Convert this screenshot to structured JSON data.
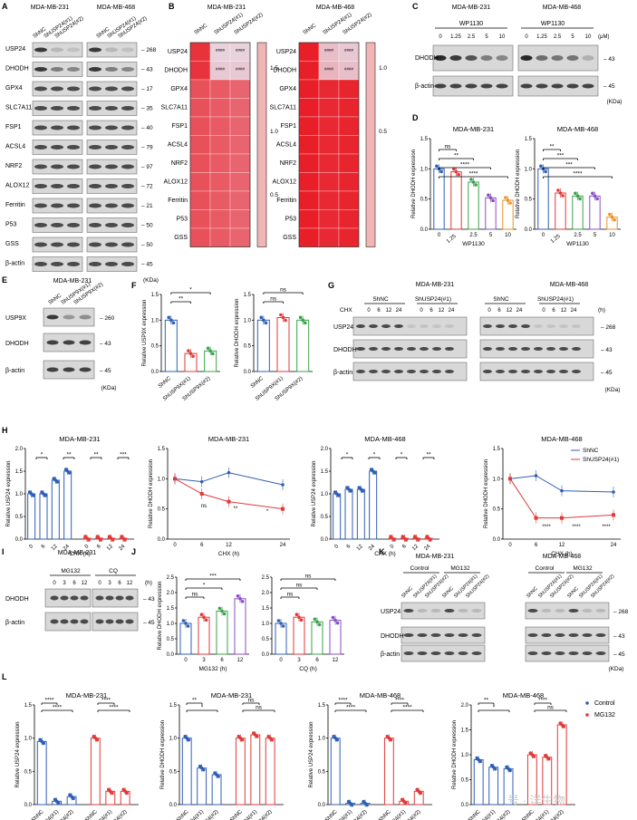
{
  "colors": {
    "nc": "#2f5fb5",
    "g1": "#e03a3a",
    "g2": "#3aa34a",
    "g3": "#8a4fc2",
    "g4": "#e8922a",
    "control": "#2f5fb5",
    "mg132": "#e03a3a",
    "heat_hi": "#e8141e",
    "heat_lo": "#fbe3e3"
  },
  "panels": [
    "A",
    "B",
    "C",
    "D",
    "E",
    "F",
    "G",
    "H",
    "I",
    "J",
    "K",
    "L"
  ],
  "sig": {
    "ns": "ns",
    "s1": "*",
    "s2": "**",
    "s3": "***",
    "s4": "****",
    "h4": "####"
  },
  "common": {
    "kda": "(KDa)",
    "bactin": "β-actin",
    "h": "(h)",
    "cl_231": "MDA-MB-231",
    "cl_468": "MDA-MB-468"
  },
  "panelA": {
    "lanes": [
      "ShNC",
      "ShUSP24(#1)",
      "ShUSP24(#2)"
    ],
    "blots": [
      {
        "label": "USP24",
        "kda": "268"
      },
      {
        "label": "DHODH",
        "kda": "43"
      },
      {
        "label": "GPX4",
        "kda": "17"
      },
      {
        "label": "SLC7A11",
        "kda": "35"
      },
      {
        "label": "FSP1",
        "kda": "40"
      },
      {
        "label": "ACSL4",
        "kda": "79"
      },
      {
        "label": "NRF2",
        "kda": "97"
      },
      {
        "label": "ALOX12",
        "kda": "72"
      },
      {
        "label": "Ferritin",
        "kda": "21"
      },
      {
        "label": "P53",
        "kda": "50"
      },
      {
        "label": "GSS",
        "kda": "50"
      },
      {
        "label": "β-actin",
        "kda": "45"
      }
    ]
  },
  "panelB": {
    "columns": [
      "ShNC",
      "ShUSP24(#1)",
      "ShUSP24(#2)"
    ],
    "rows": [
      "USP24",
      "DHODH",
      "GPX4",
      "SLC7A11",
      "FSP1",
      "ACSL4",
      "NRF2",
      "ALOX12",
      "Ferritin",
      "P53",
      "GSS"
    ],
    "scale_231": [
      "1.5",
      "1.0",
      "0.5"
    ],
    "scale_468": [
      "1.0",
      "0.5"
    ]
  },
  "panelC": {
    "title": "WP1130",
    "doses": [
      "0",
      "1.25",
      "2.5",
      "5",
      "10"
    ],
    "unit": "(μM)",
    "labels": [
      "DHODH",
      "β-actin"
    ],
    "kda": [
      "43",
      "45"
    ]
  },
  "chart_data": [
    {
      "panel": "D",
      "type": "bar",
      "title": "MDA-MB-231",
      "ylabel": "Relative DHODH expression",
      "xlabel": "WP1130",
      "categories": [
        "0",
        "1.25",
        "2.5",
        "5",
        "10"
      ],
      "values": [
        1.0,
        0.95,
        0.78,
        0.52,
        0.48
      ],
      "ylim": [
        0,
        1.5
      ],
      "yticks": [
        "0.0",
        "0.5",
        "1.0",
        "1.5"
      ],
      "sig": [
        "ns",
        "**",
        "****",
        "****"
      ]
    },
    {
      "panel": "D",
      "type": "bar",
      "title": "MDA-MB-468",
      "ylabel": "Relative DHODH expression",
      "xlabel": "WP1130",
      "categories": [
        "0",
        "1.25",
        "2.5",
        "5",
        "10"
      ],
      "values": [
        1.0,
        0.6,
        0.55,
        0.55,
        0.2
      ],
      "ylim": [
        0,
        1.5
      ],
      "yticks": [
        "0.0",
        "0.5",
        "1.0",
        "1.5"
      ],
      "sig": [
        "**",
        "***",
        "***",
        "****"
      ]
    },
    {
      "panel": "F",
      "type": "bar",
      "ylabel": "Relative USP9X expression",
      "categories": [
        "ShNC",
        "ShUSP9X(#1)",
        "ShUSP9X(#2)"
      ],
      "values": [
        1.0,
        0.35,
        0.4
      ],
      "ylim": [
        0,
        1.5
      ],
      "yticks": [
        "0.0",
        "0.5",
        "1.0",
        "1.5"
      ],
      "sig": [
        "**",
        "*"
      ]
    },
    {
      "panel": "F",
      "type": "bar",
      "ylabel": "Relative DHODH expression",
      "categories": [
        "ShNC",
        "ShUSP9X(#1)",
        "ShUSP9X(#2)"
      ],
      "values": [
        1.0,
        1.05,
        1.0
      ],
      "ylim": [
        0,
        1.5
      ],
      "yticks": [
        "0.0",
        "0.5",
        "1.0",
        "1.5"
      ],
      "sig": [
        "ns",
        "ns"
      ]
    },
    {
      "panel": "H",
      "type": "bar",
      "title": "MDA-MB-231",
      "ylabel": "Relative USP24 expression",
      "xlabel": "CHX (h)",
      "categories": [
        "0",
        "6",
        "12",
        "24"
      ],
      "series": [
        {
          "name": "ShNC",
          "values": [
            1.0,
            1.0,
            1.3,
            1.5
          ]
        },
        {
          "name": "ShUSP24(#1)",
          "values": [
            0.02,
            0.02,
            0.02,
            0.02
          ]
        }
      ],
      "ylim": [
        0,
        2.0
      ],
      "yticks": [
        "0.0",
        "0.5",
        "1.0",
        "1.5",
        "2.0"
      ],
      "sig": [
        "*",
        "**",
        "**",
        "***"
      ]
    },
    {
      "panel": "H",
      "type": "line",
      "title": "MDA-MB-231",
      "ylabel": "Relative DHODH expression",
      "xlabel": "CHX (h)",
      "x": [
        0,
        6,
        12,
        24
      ],
      "series": [
        {
          "name": "ShNC",
          "values": [
            1.0,
            0.95,
            1.1,
            0.9
          ]
        },
        {
          "name": "ShUSP24(#1)",
          "values": [
            1.0,
            0.75,
            0.62,
            0.5
          ]
        }
      ],
      "ylim": [
        0,
        1.5
      ],
      "yticks": [
        "0.0",
        "0.5",
        "1.0",
        "1.5"
      ],
      "sig": [
        "ns",
        "**",
        "*"
      ]
    },
    {
      "panel": "H",
      "type": "bar",
      "title": "MDA-MB-468",
      "ylabel": "Relative USP24 expression",
      "xlabel": "CHX (h)",
      "categories": [
        "0",
        "6",
        "12",
        "24"
      ],
      "series": [
        {
          "name": "ShNC",
          "values": [
            1.0,
            1.1,
            1.1,
            1.5
          ]
        },
        {
          "name": "ShUSP24(#1)",
          "values": [
            0.02,
            0.02,
            0.02,
            0.02
          ]
        }
      ],
      "ylim": [
        0,
        2.0
      ],
      "yticks": [
        "0.0",
        "0.5",
        "1.0",
        "1.5",
        "2.0"
      ],
      "sig": [
        "*",
        "*",
        "*",
        "**"
      ]
    },
    {
      "panel": "H",
      "type": "line",
      "title": "MDA-MB-468",
      "ylabel": "Relative DHODH expression",
      "xlabel": "CHX (h)",
      "x": [
        0,
        6,
        12,
        24
      ],
      "series": [
        {
          "name": "ShNC",
          "values": [
            1.0,
            1.05,
            0.8,
            0.78
          ]
        },
        {
          "name": "ShUSP24(#1)",
          "values": [
            1.0,
            0.35,
            0.35,
            0.4
          ]
        }
      ],
      "ylim": [
        0,
        1.5
      ],
      "yticks": [
        "0.0",
        "0.5",
        "1.0",
        "1.5"
      ],
      "legend": "top-right",
      "sig": [
        "****",
        "****",
        "****"
      ]
    },
    {
      "panel": "J",
      "type": "bar",
      "ylabel": "Relative DHODH expression",
      "xlabel": "MG132 (h)",
      "categories": [
        "0",
        "3",
        "6",
        "12"
      ],
      "values": [
        1.0,
        1.2,
        1.4,
        1.8
      ],
      "ylim": [
        0,
        2.5
      ],
      "yticks": [
        "0.0",
        "0.5",
        "1.0",
        "1.5",
        "2.0",
        "2.5"
      ],
      "sig": [
        "ns",
        "*",
        "***"
      ]
    },
    {
      "panel": "J",
      "type": "bar",
      "xlabel": "CQ (h)",
      "categories": [
        "0",
        "3",
        "6",
        "12"
      ],
      "values": [
        1.0,
        1.2,
        1.05,
        1.1
      ],
      "ylim": [
        0,
        2.5
      ],
      "yticks": [
        "0.0",
        "0.5",
        "1.0",
        "1.5",
        "2.0",
        "2.5"
      ],
      "sig": [
        "ns",
        "ns",
        "ns"
      ]
    },
    {
      "panel": "L",
      "type": "bar",
      "title": "MDA-MB-231",
      "ylabel": "Relative USP24 expression",
      "categories": [
        "ShNC",
        "ShUSP24(#1)",
        "ShUSP24(#2)"
      ],
      "series": [
        {
          "name": "Control",
          "values": [
            0.95,
            0.05,
            0.12
          ]
        },
        {
          "name": "MG132",
          "values": [
            1.0,
            0.2,
            0.2
          ]
        }
      ],
      "ylim": [
        0,
        1.5
      ],
      "yticks": [
        "0.0",
        "0.5",
        "1.0",
        "1.5"
      ],
      "sig": [
        "****",
        "****",
        "****",
        "****"
      ]
    },
    {
      "panel": "L",
      "type": "bar",
      "title": "MDA-MB-231",
      "ylabel": "Relative DHODH expression",
      "categories": [
        "ShNC",
        "ShUSP24(#1)",
        "ShUSP24(#2)"
      ],
      "series": [
        {
          "name": "Control",
          "values": [
            1.0,
            0.55,
            0.45
          ]
        },
        {
          "name": "MG132",
          "values": [
            1.0,
            1.05,
            1.0
          ]
        }
      ],
      "ylim": [
        0,
        1.5
      ],
      "yticks": [
        "0.0",
        "0.5",
        "1.0",
        "1.5"
      ],
      "sig": [
        "**",
        "*",
        "ns",
        "ns"
      ]
    },
    {
      "panel": "L",
      "type": "bar",
      "title": "MDA-MB-468",
      "ylabel": "Relative USP24 expression",
      "categories": [
        "ShNC",
        "ShUSP24(#1)",
        "ShUSP24(#2)"
      ],
      "series": [
        {
          "name": "Control",
          "values": [
            1.0,
            0.02,
            0.02
          ]
        },
        {
          "name": "MG132",
          "values": [
            1.0,
            0.05,
            0.2
          ]
        }
      ],
      "ylim": [
        0,
        1.5
      ],
      "yticks": [
        "0.0",
        "0.5",
        "1.0",
        "1.5"
      ],
      "sig": [
        "****",
        "****",
        "****",
        "****"
      ]
    },
    {
      "panel": "L",
      "type": "bar",
      "title": "MDA-MB-468",
      "ylabel": "Relative DHODH expression",
      "categories": [
        "ShNC",
        "ShUSP24(#1)",
        "ShUSP24(#2)"
      ],
      "series": [
        {
          "name": "Control",
          "values": [
            0.9,
            0.75,
            0.72
          ]
        },
        {
          "name": "MG132",
          "values": [
            1.0,
            0.95,
            1.6
          ]
        }
      ],
      "ylim": [
        0,
        2.0
      ],
      "yticks": [
        "0.0",
        "0.5",
        "1.0",
        "1.5",
        "2.0"
      ],
      "legend": "right",
      "sig": [
        "**",
        "*",
        "****",
        "ns"
      ]
    }
  ],
  "panelE": {
    "title": "MDA-MB-231",
    "lanes": [
      "ShNC",
      "ShUSP9X(#1)",
      "ShUSP9X(#2)"
    ],
    "labels": [
      "USP9X",
      "DHODH",
      "β-actin"
    ],
    "kda": [
      "260",
      "43",
      "45"
    ]
  },
  "panelG": {
    "chx": "CHX",
    "groups": [
      "ShNC",
      "ShUSP24(#1)",
      "ShNC",
      "ShUSP24(#1)"
    ],
    "times": [
      "0",
      "6",
      "12",
      "24"
    ],
    "labels": [
      "USP24",
      "DHODH",
      "β-actin"
    ],
    "kda": [
      "268",
      "43",
      "45"
    ]
  },
  "panelI": {
    "title": "MDA-MB-231",
    "groups": [
      "MG132",
      "CQ"
    ],
    "times": [
      "0",
      "3",
      "6",
      "12"
    ],
    "labels": [
      "DHODH",
      "β-actin"
    ],
    "kda": [
      "43",
      "45"
    ]
  },
  "panelK": {
    "groups": [
      "Control",
      "MG132",
      "Control",
      "MG132"
    ],
    "lanes": [
      "ShNC",
      "ShUSP24(#1)",
      "ShUSP24(#2)"
    ],
    "labels": [
      "USP24",
      "DHODH",
      "β-actin"
    ],
    "kda": [
      "268",
      "43",
      "45"
    ]
  },
  "legendL": {
    "control": "Control",
    "mg132": "MG132"
  },
  "watermark": "号 · 洋生物"
}
